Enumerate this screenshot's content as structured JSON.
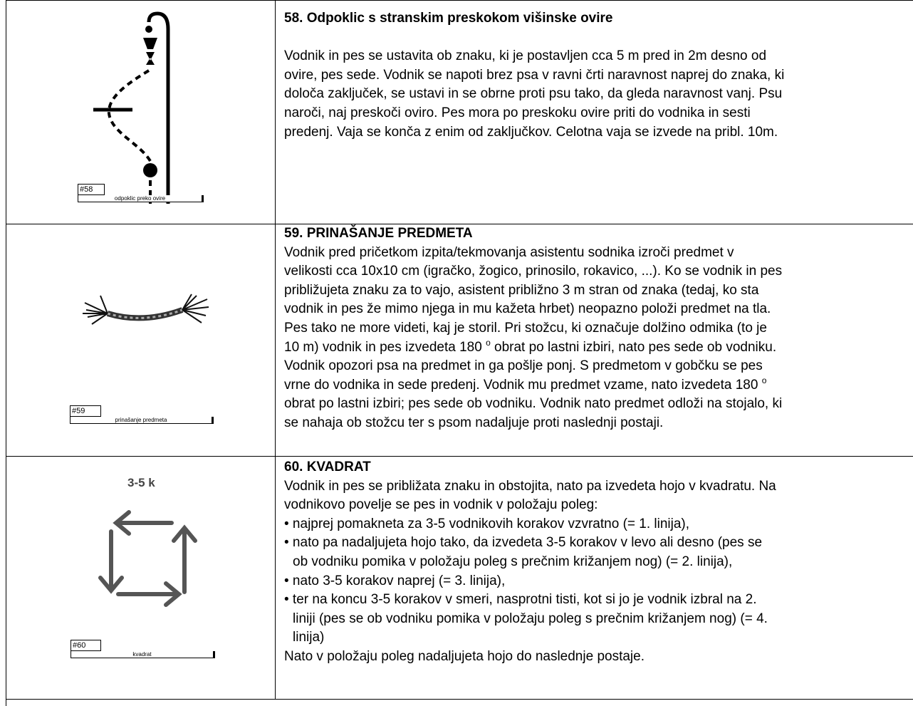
{
  "rows": [
    {
      "label": "#58",
      "caption": "odpoklic preko ovire",
      "title": "58. Odpoklic s stranskim preskokom višinske ovire",
      "body": [
        "Vodnik in pes se ustavita ob znaku, ki je postavljen cca 5 m pred in 2m desno od",
        "ovire, pes sede. Vodnik se napoti brez psa v ravni črti naravnost naprej do znaka, ki",
        "določa zaključek, se ustavi in se obrne proti psu tako, da gleda naravnost vanj. Psu",
        "naroči, naj preskoči oviro. Pes mora po preskoku ovire priti do vodnika in sesti",
        "predenj. Vaja se konča z enim od zaključkov. Celotna vaja se izvede na pribl. 10m."
      ]
    },
    {
      "label": "#59",
      "caption": "prinašanje predmeta",
      "title": "59. PRINAŠANJE PREDMETA",
      "body": [
        "Vodnik pred pričetkom izpita/tekmovanja asistentu sodnika izroči predmet v",
        "velikosti cca 10x10 cm (igračko, žogico, prinosilo, rokavico, ...). Ko se vodnik in pes",
        "približujeta znaku za to vajo, asistent približno 3 m stran od znaka (tedaj, ko sta",
        "vodnik in pes že mimo njega in mu kažeta hrbet) neopazno položi predmet na tla.",
        "Pes tako ne more videti, kaj je storil. Pri stožcu, ki označuje dolžino odmika (to je",
        [
          "10 m) vodnik in pes izvedeta 180 ",
          "o",
          " obrat po lastni izbiri, nato pes sede ob vodniku."
        ],
        "Vodnik opozori psa na predmet in ga pošlje ponj. S predmetom v gobčku se pes",
        [
          "vrne do vodnika in sede predenj. Vodnik mu predmet vzame, nato izvedeta 180 ",
          "o"
        ],
        "obrat po lastni izbiri; pes sede ob vodniku. Vodnik nato predmet odloži na stojalo, ki",
        "se nahaja ob stožcu ter s psom nadaljuje proti naslednji postaji."
      ]
    },
    {
      "label": "#60",
      "caption": "kvadrat",
      "steps": "3-5 k",
      "title": "60. KVADRAT",
      "body": [
        "Vodnik in pes se približata znaku in obstojita, nato pa izvedeta hojo v kvadratu. Na",
        "vodnikovo povelje se pes in vodnik v položaju poleg:"
      ],
      "bullets": [
        [
          "• najprej pomakneta za 3-5 vodnikovih korakov vzvratno (= 1. linija),"
        ],
        [
          "• nato pa nadaljujeta hojo tako, da izvedeta 3-5 korakov v levo ali desno (pes se",
          "ob vodniku pomika v položaju poleg s prečnim križanjem nog) (= 2. linija),"
        ],
        [
          "• nato 3-5 korakov naprej (= 3. linija),"
        ],
        [
          "• ter na koncu 3-5 korakov v smeri, nasprotni tisti, kot si jo je vodnik izbral na 2.",
          "liniji (pes se ob vodniku pomika v položaju poleg s prečnim križanjem nog) (= 4.",
          "linija)"
        ]
      ],
      "outro": [
        "Nato v položaju poleg nadaljujeta hojo do naslednje postaje."
      ]
    }
  ]
}
